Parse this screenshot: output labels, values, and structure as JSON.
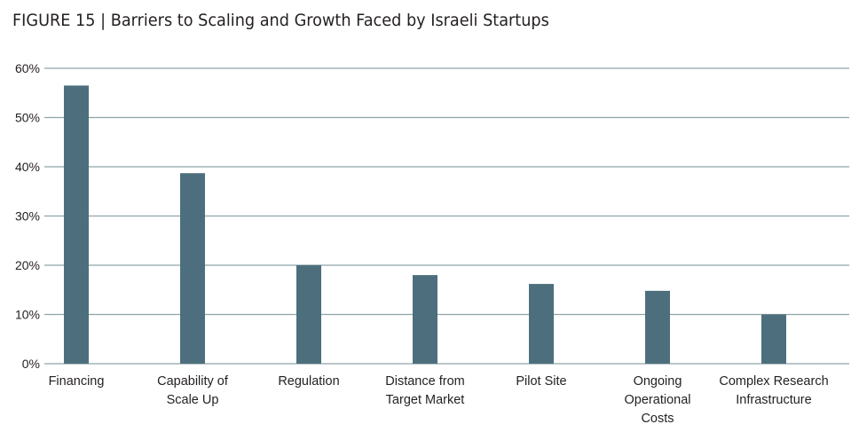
{
  "chart_data": {
    "type": "bar",
    "title": "FIGURE 15 | Barriers to Scaling and Growth Faced by Israeli Startups",
    "xlabel": "",
    "ylabel": "",
    "categories": [
      "Financing",
      "Capability of Scale Up",
      "Regulation",
      "Distance from Target Market",
      "Pilot Site",
      "Ongoing Operational Costs",
      "Complex Research Infrastructure"
    ],
    "category_label_lines": [
      [
        "Financing"
      ],
      [
        "Capability of",
        "Scale Up"
      ],
      [
        "Regulation"
      ],
      [
        "Distance from",
        "Target Market"
      ],
      [
        "Pilot Site"
      ],
      [
        "Ongoing",
        "Operational",
        "Costs"
      ],
      [
        "Complex Research",
        "Infrastructure"
      ]
    ],
    "values": [
      56.5,
      38.7,
      20.0,
      18.0,
      16.2,
      14.8,
      10.0
    ],
    "value_unit": "%",
    "ylim": [
      0,
      60
    ],
    "yticks": [
      0,
      10,
      20,
      30,
      40,
      50,
      60
    ],
    "ytick_labels": [
      "0%",
      "10%",
      "20%",
      "30%",
      "40%",
      "50%",
      "60%"
    ],
    "grid": true,
    "legend": "none",
    "colors": {
      "bar": "#4d6f7d",
      "grid": "#8fa3aa",
      "text": "#231f20"
    }
  }
}
